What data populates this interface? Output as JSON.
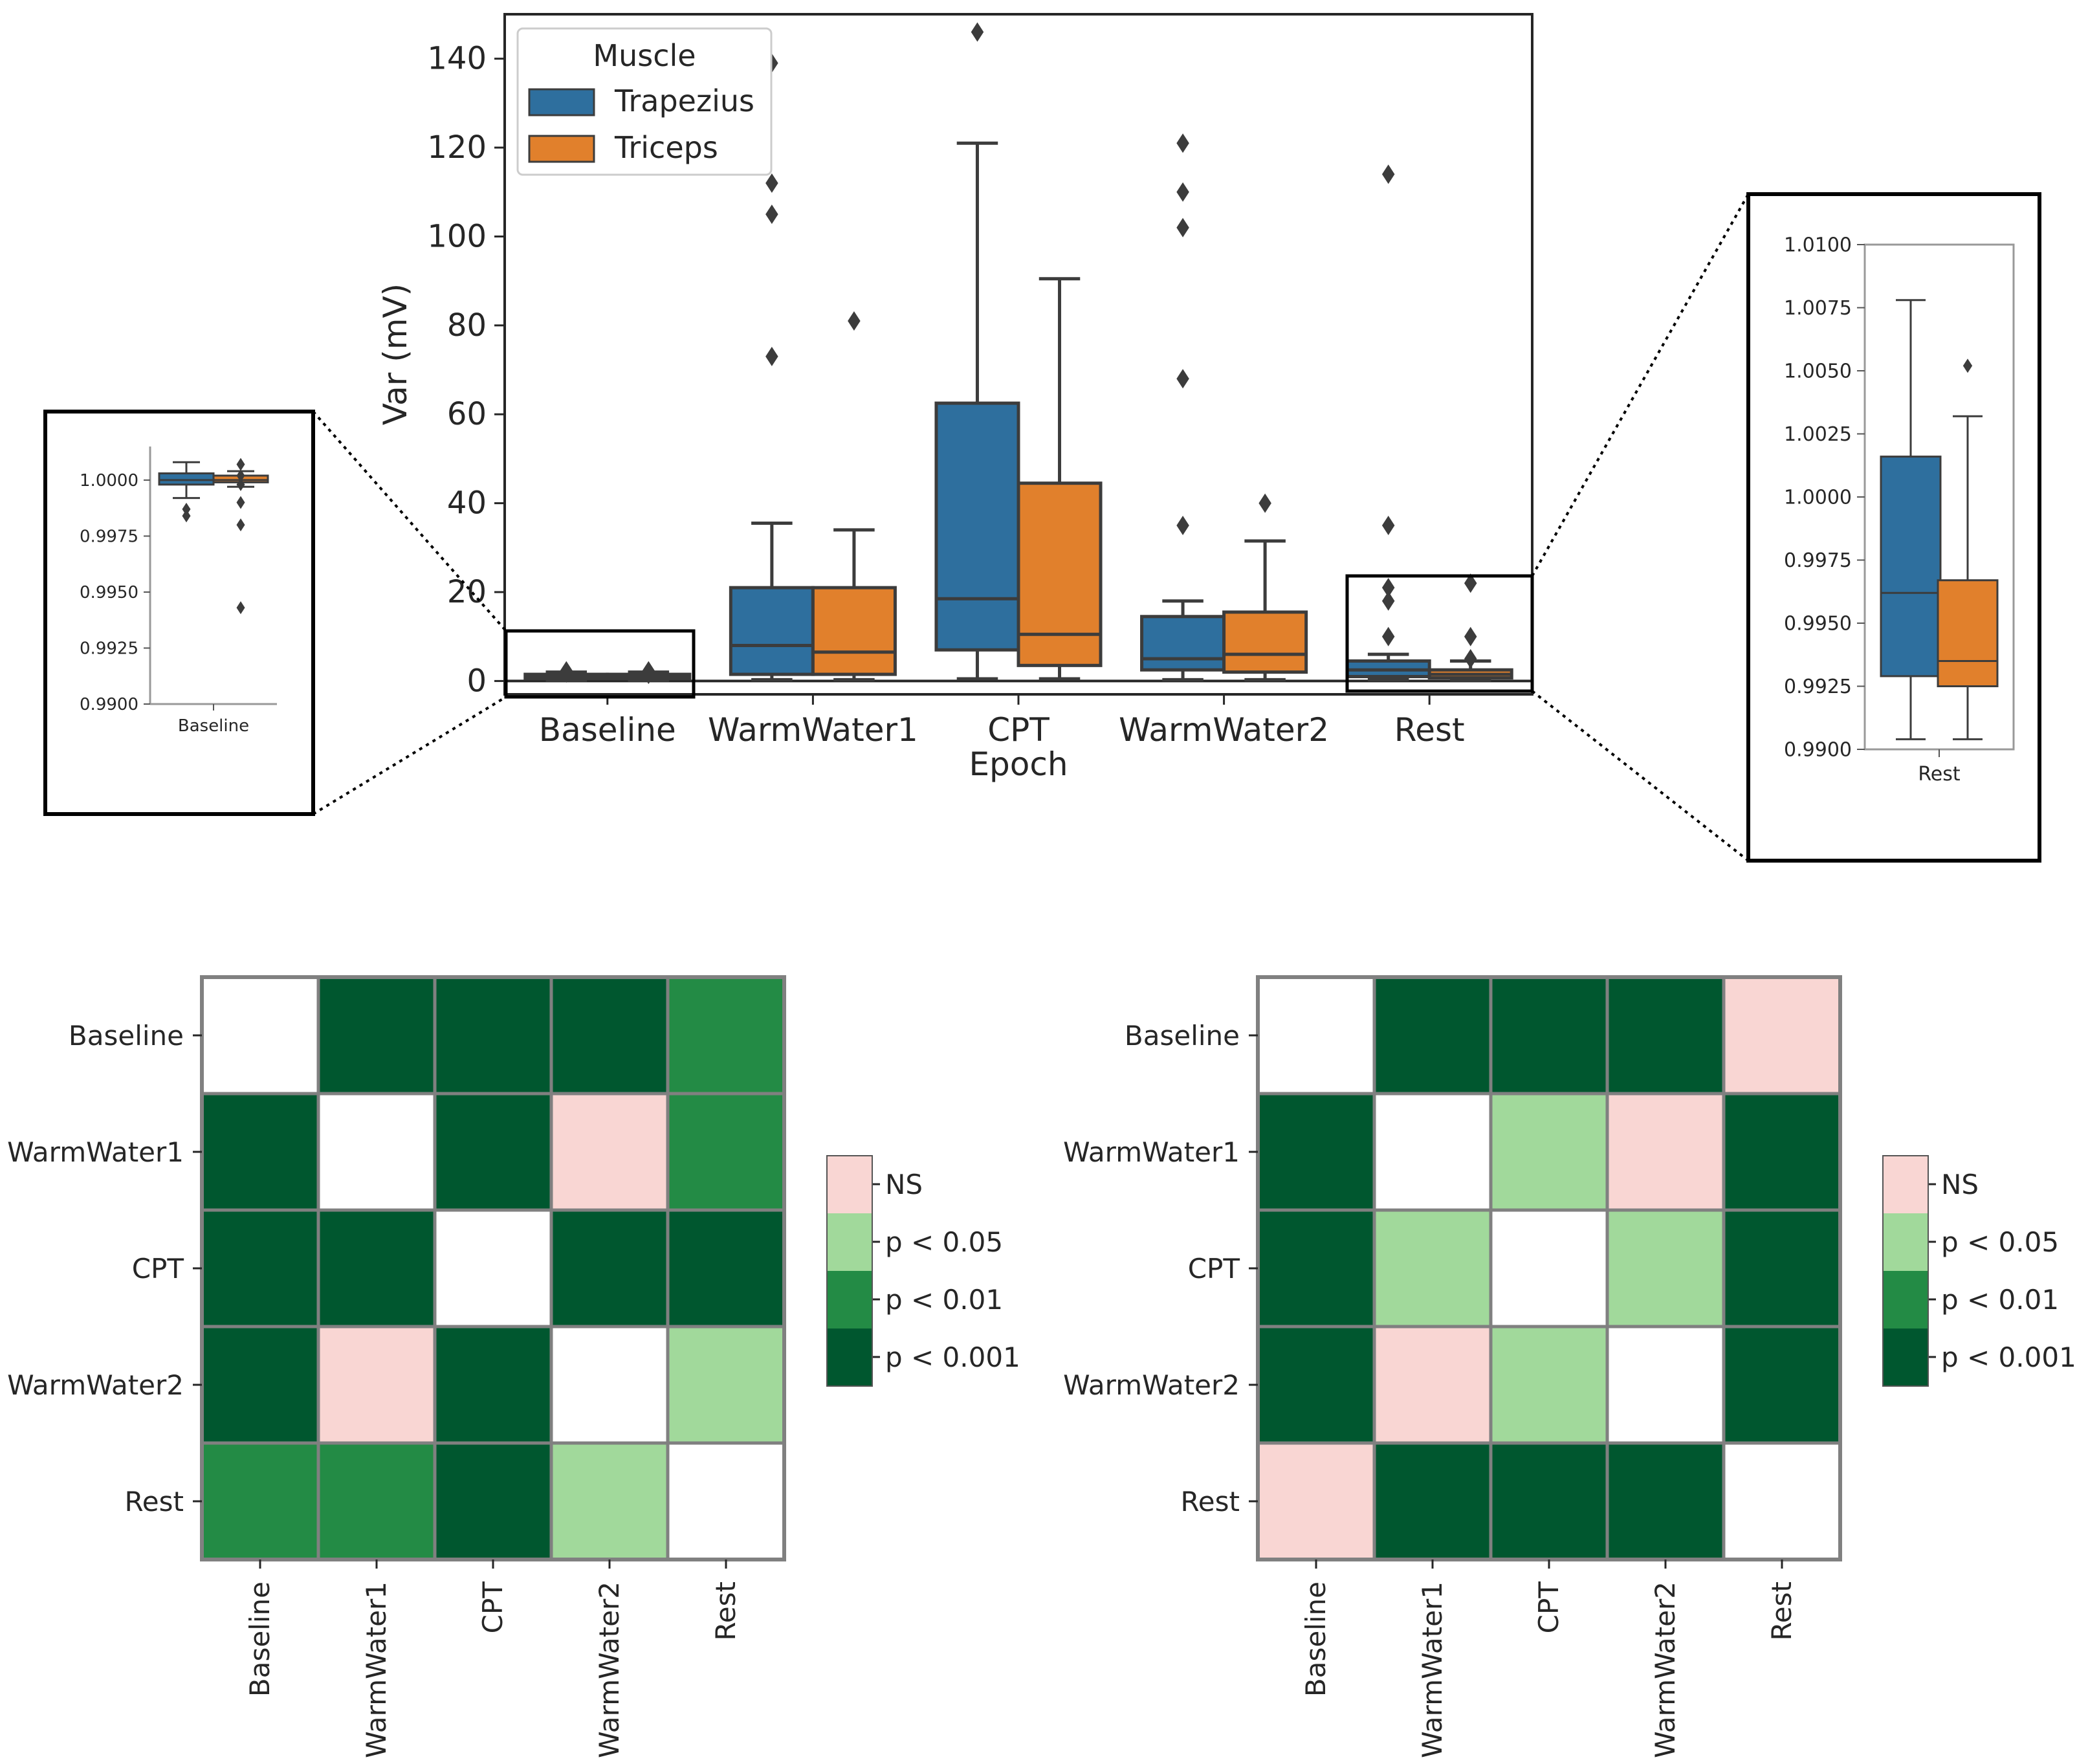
{
  "chart_data": [
    {
      "id": "main-boxplot",
      "type": "box",
      "title": "",
      "xlabel": "Epoch",
      "ylabel": "Var (mV)",
      "ylim": [
        -3,
        150
      ],
      "yticks": [
        0,
        20,
        40,
        60,
        80,
        100,
        120,
        140
      ],
      "ytick_labels": [
        "0",
        "20",
        "40",
        "60",
        "80",
        "100",
        "120",
        "140"
      ],
      "categories": [
        "Baseline",
        "WarmWater1",
        "CPT",
        "WarmWater2",
        "Rest"
      ],
      "legend": {
        "title": "Muscle",
        "position": "top-left",
        "entries": [
          "Trapezius",
          "Triceps"
        ]
      },
      "series": [
        {
          "name": "Trapezius",
          "color": "#2e6f9e",
          "boxes": [
            {
              "q1": 0.5,
              "median": 1.0,
              "q3": 1.5,
              "whislo": 0.2,
              "whishi": 2.0,
              "fliers": [
                1.8,
                2.3
              ]
            },
            {
              "q1": 1.5,
              "median": 8.0,
              "q3": 21.0,
              "whislo": 0.3,
              "whishi": 35.5,
              "fliers": [
                73,
                105,
                112,
                139
              ]
            },
            {
              "q1": 7.0,
              "median": 18.5,
              "q3": 62.5,
              "whislo": 0.5,
              "whishi": 121,
              "fliers": [
                146
              ]
            },
            {
              "q1": 2.5,
              "median": 5.0,
              "q3": 14.5,
              "whislo": 0.3,
              "whishi": 18.0,
              "fliers": [
                35,
                68,
                102,
                110,
                121
              ]
            },
            {
              "q1": 1.0,
              "median": 2.5,
              "q3": 4.5,
              "whislo": 0.3,
              "whishi": 6.0,
              "fliers": [
                10,
                18,
                21,
                35,
                114
              ]
            }
          ]
        },
        {
          "name": "Triceps",
          "color": "#e1802c",
          "boxes": [
            {
              "q1": 0.5,
              "median": 1.0,
              "q3": 1.5,
              "whislo": 0.2,
              "whishi": 2.0,
              "fliers": [
                1.5,
                2.3
              ]
            },
            {
              "q1": 1.5,
              "median": 6.5,
              "q3": 21.0,
              "whislo": 0.3,
              "whishi": 34.0,
              "fliers": [
                81
              ]
            },
            {
              "q1": 3.5,
              "median": 10.5,
              "q3": 44.5,
              "whislo": 0.5,
              "whishi": 90.5,
              "fliers": []
            },
            {
              "q1": 2.0,
              "median": 6.0,
              "q3": 15.5,
              "whislo": 0.3,
              "whishi": 31.5,
              "fliers": [
                40
              ]
            },
            {
              "q1": 0.7,
              "median": 1.5,
              "q3": 2.5,
              "whislo": 0.2,
              "whishi": 4.5,
              "fliers": [
                5,
                10,
                22
              ]
            }
          ]
        }
      ]
    },
    {
      "id": "inset-baseline",
      "type": "box",
      "title": "",
      "xlabel": "",
      "ylim": [
        0.99,
        1.0015
      ],
      "yticks": [
        0.99,
        0.9925,
        0.995,
        0.9975,
        1.0
      ],
      "ytick_labels": [
        "0.9900",
        "0.9925",
        "0.9950",
        "0.9975",
        "1.0000"
      ],
      "categories": [
        "Baseline"
      ],
      "series": [
        {
          "name": "Trapezius",
          "color": "#2e6f9e",
          "boxes": [
            {
              "q1": 0.9998,
              "median": 1.0,
              "q3": 1.0003,
              "whislo": 0.9992,
              "whishi": 1.0008,
              "fliers": [
                0.9987,
                0.9984
              ]
            }
          ]
        },
        {
          "name": "Triceps",
          "color": "#e1802c",
          "boxes": [
            {
              "q1": 0.9999,
              "median": 1.0,
              "q3": 1.0002,
              "whislo": 0.9997,
              "whishi": 1.0004,
              "fliers": [
                1.0007,
                1.0002,
                0.9998,
                0.999,
                0.998,
                0.9943
              ]
            }
          ]
        }
      ]
    },
    {
      "id": "inset-rest",
      "type": "box",
      "title": "",
      "xlabel": "",
      "ylim": [
        0.99,
        1.01
      ],
      "yticks": [
        0.99,
        0.9925,
        0.995,
        0.9975,
        1.0,
        1.0025,
        1.005,
        1.0075,
        1.01
      ],
      "ytick_labels": [
        "0.9900",
        "0.9925",
        "0.9950",
        "0.9975",
        "1.0000",
        "1.0025",
        "1.0050",
        "1.0075",
        "1.0100"
      ],
      "categories": [
        "Rest"
      ],
      "series": [
        {
          "name": "Trapezius",
          "color": "#2e6f9e",
          "boxes": [
            {
              "q1": 0.9929,
              "median": 0.9962,
              "q3": 1.0016,
              "whislo": 0.9904,
              "whishi": 1.0078,
              "fliers": []
            }
          ]
        },
        {
          "name": "Triceps",
          "color": "#e1802c",
          "boxes": [
            {
              "q1": 0.9925,
              "median": 0.9935,
              "q3": 0.9967,
              "whislo": 0.9904,
              "whishi": 1.0032,
              "fliers": [
                1.0052
              ]
            }
          ]
        }
      ]
    },
    {
      "id": "heatmap-left",
      "type": "heatmap",
      "title": "",
      "rows": [
        "Baseline",
        "WarmWater1",
        "CPT",
        "WarmWater2",
        "Rest"
      ],
      "cols": [
        "Baseline",
        "WarmWater1",
        "CPT",
        "WarmWater2",
        "Rest"
      ],
      "matrix": [
        [
          "diag",
          "p < 0.001",
          "p < 0.001",
          "p < 0.001",
          "p < 0.01"
        ],
        [
          "p < 0.001",
          "diag",
          "p < 0.001",
          "NS",
          "p < 0.01"
        ],
        [
          "p < 0.001",
          "p < 0.001",
          "diag",
          "p < 0.001",
          "p < 0.001"
        ],
        [
          "p < 0.001",
          "NS",
          "p < 0.001",
          "diag",
          "p < 0.05"
        ],
        [
          "p < 0.01",
          "p < 0.01",
          "p < 0.001",
          "p < 0.05",
          "diag"
        ]
      ]
    },
    {
      "id": "heatmap-right",
      "type": "heatmap",
      "title": "",
      "rows": [
        "Baseline",
        "WarmWater1",
        "CPT",
        "WarmWater2",
        "Rest"
      ],
      "cols": [
        "Baseline",
        "WarmWater1",
        "CPT",
        "WarmWater2",
        "Rest"
      ],
      "matrix": [
        [
          "diag",
          "p < 0.001",
          "p < 0.001",
          "p < 0.001",
          "NS"
        ],
        [
          "p < 0.001",
          "diag",
          "p < 0.05",
          "NS",
          "p < 0.001"
        ],
        [
          "p < 0.001",
          "p < 0.05",
          "diag",
          "p < 0.05",
          "p < 0.001"
        ],
        [
          "p < 0.001",
          "NS",
          "p < 0.05",
          "diag",
          "p < 0.001"
        ],
        [
          "NS",
          "p < 0.001",
          "p < 0.001",
          "p < 0.001",
          "diag"
        ]
      ]
    }
  ],
  "significance_legend": {
    "levels": [
      "NS",
      "p < 0.05",
      "p < 0.01",
      "p < 0.001"
    ],
    "colors": {
      "NS": "#f9d6d3",
      "p < 0.05": "#a1d99b",
      "p < 0.01": "#238b45",
      "p < 0.001": "#00572f",
      "diag": "#ffffff"
    }
  },
  "style": {
    "box_edge": "#3c3c3c",
    "frame": "#000000",
    "grid_line": "#808080"
  }
}
